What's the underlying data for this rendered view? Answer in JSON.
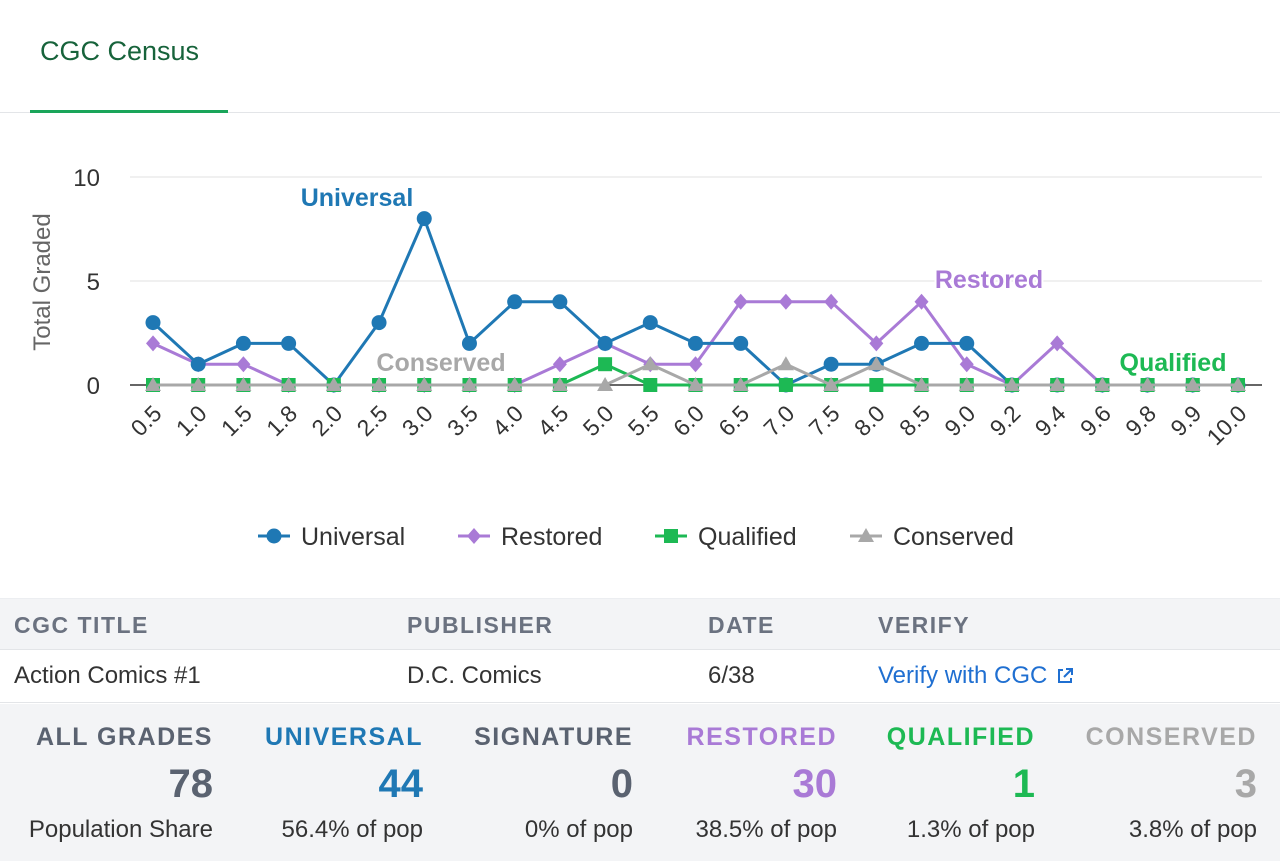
{
  "tabs": [
    {
      "label": "CGC Census"
    }
  ],
  "colors": {
    "universal": "#1f78b4",
    "restored": "#a97ad6",
    "qualified": "#1db954",
    "conserved": "#a8a8a8",
    "all": "#5a6270",
    "accent": "#1aa55a"
  },
  "chart_data": {
    "type": "line",
    "ylabel": "Total Graded",
    "xlabel": "",
    "ylim": [
      0,
      10
    ],
    "yticks": [
      0,
      5,
      10
    ],
    "grid": true,
    "legend_position": "bottom",
    "categories": [
      "0.5",
      "1.0",
      "1.5",
      "1.8",
      "2.0",
      "2.5",
      "3.0",
      "3.5",
      "4.0",
      "4.5",
      "5.0",
      "5.5",
      "6.0",
      "6.5",
      "7.0",
      "7.5",
      "8.0",
      "8.5",
      "9.0",
      "9.2",
      "9.4",
      "9.6",
      "9.8",
      "9.9",
      "10.0"
    ],
    "series": [
      {
        "name": "Universal",
        "marker": "circle",
        "label": "Universal",
        "color": "#1f78b4",
        "values": [
          3,
          1,
          2,
          2,
          0,
          3,
          8,
          2,
          4,
          4,
          2,
          3,
          2,
          2,
          0,
          1,
          1,
          2,
          2,
          0,
          0,
          0,
          0,
          0,
          0
        ]
      },
      {
        "name": "Restored",
        "marker": "diamond",
        "label": "Restored",
        "color": "#a97ad6",
        "values": [
          2,
          1,
          1,
          0,
          0,
          0,
          0,
          0,
          0,
          1,
          2,
          1,
          1,
          4,
          4,
          4,
          2,
          4,
          1,
          0,
          2,
          0,
          0,
          0,
          0
        ]
      },
      {
        "name": "Qualified",
        "marker": "square",
        "label": "Qualified",
        "color": "#1db954",
        "values": [
          0,
          0,
          0,
          0,
          0,
          0,
          0,
          0,
          0,
          0,
          1,
          0,
          0,
          0,
          0,
          0,
          0,
          0,
          0,
          0,
          0,
          0,
          0,
          0,
          0
        ]
      },
      {
        "name": "Conserved",
        "marker": "triangle",
        "label": "Conserved",
        "color": "#a8a8a8",
        "values": [
          0,
          0,
          0,
          0,
          0,
          0,
          0,
          0,
          0,
          0,
          0,
          1,
          0,
          0,
          1,
          0,
          1,
          0,
          0,
          0,
          0,
          0,
          0,
          0,
          0
        ]
      }
    ]
  },
  "table": {
    "headers": [
      "CGC TITLE",
      "PUBLISHER",
      "DATE",
      "VERIFY"
    ],
    "row": {
      "title": "Action Comics #1",
      "publisher": "D.C. Comics",
      "date": "6/38",
      "verify": "Verify with CGC"
    }
  },
  "stats": [
    {
      "label": "ALL GRADES",
      "value": "78",
      "sub": "Population Share",
      "color": "#5a6270"
    },
    {
      "label": "UNIVERSAL",
      "value": "44",
      "sub": "56.4% of pop",
      "color": "#1f78b4"
    },
    {
      "label": "SIGNATURE",
      "value": "0",
      "sub": "0% of pop",
      "color": "#5a6270"
    },
    {
      "label": "RESTORED",
      "value": "30",
      "sub": "38.5% of pop",
      "color": "#a97ad6"
    },
    {
      "label": "QUALIFIED",
      "value": "1",
      "sub": "1.3% of pop",
      "color": "#1db954"
    },
    {
      "label": "CONSERVED",
      "value": "3",
      "sub": "3.8% of pop",
      "color": "#a8a8a8"
    }
  ]
}
